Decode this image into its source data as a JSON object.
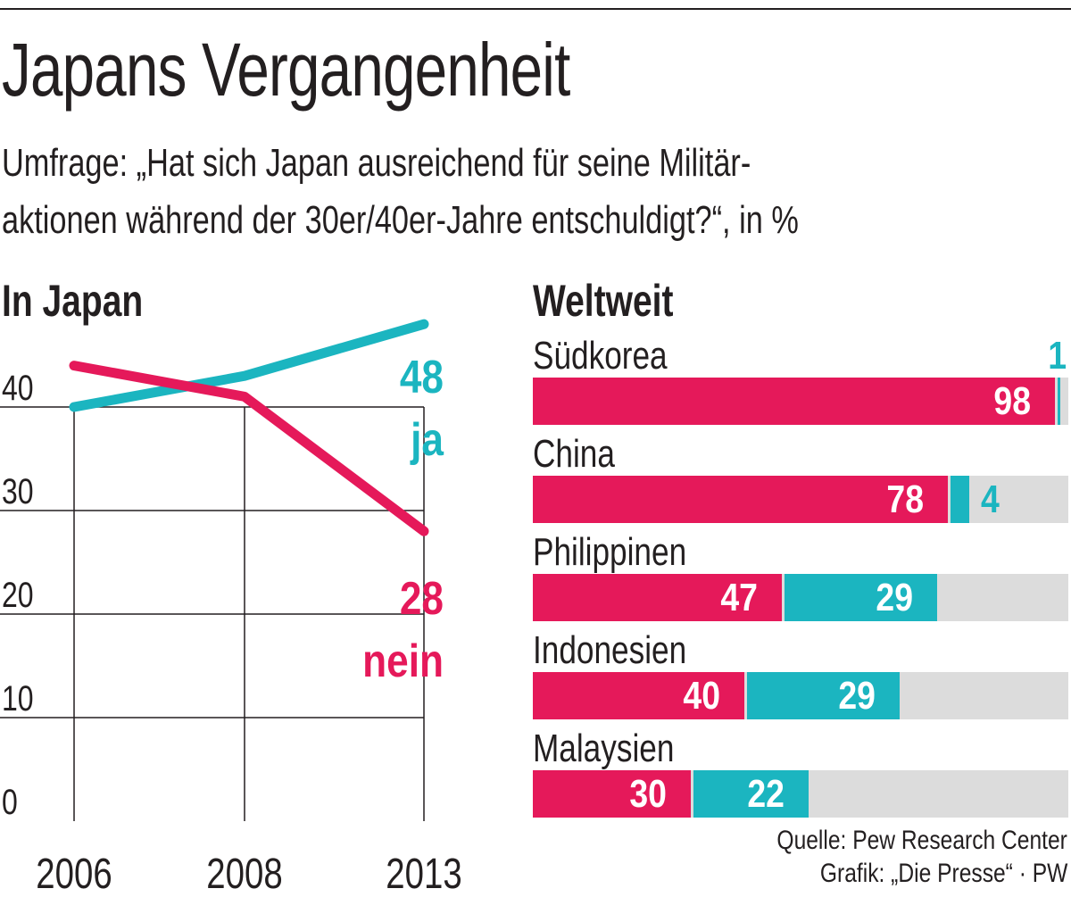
{
  "title": "Japans Vergangenheit",
  "subtitle_line1": "Umfrage: „Hat sich Japan ausreichend für seine Militär-",
  "subtitle_line2": "aktionen während der 30er/40er-Jahre entschuldigt?“, in %",
  "source": "Quelle: Pew Research Center",
  "credit": "Grafik: „Die Presse“ · PW",
  "colors": {
    "nein": "#e5195a",
    "ja": "#1bb5c0",
    "rest": "#dcdcdc",
    "grid": "#231f20"
  },
  "chart_data": [
    {
      "type": "line",
      "title": "In Japan",
      "x": [
        "2006",
        "2008",
        "2013"
      ],
      "yticks": [
        "0",
        "10",
        "20",
        "30",
        "40"
      ],
      "ylim": [
        0,
        48
      ],
      "grid": true,
      "series": [
        {
          "name": "ja",
          "values": [
            40,
            43,
            48
          ],
          "end_label": "48"
        },
        {
          "name": "nein",
          "values": [
            44,
            41,
            28
          ],
          "end_label": "28"
        }
      ]
    },
    {
      "type": "bar",
      "title": "Weltweit",
      "stacked": true,
      "xlim": [
        0,
        100
      ],
      "categories": [
        "Südkorea",
        "China",
        "Philippinen",
        "Indonesien",
        "Malaysien"
      ],
      "series": [
        {
          "name": "nein",
          "values": [
            98,
            78,
            47,
            40,
            30
          ]
        },
        {
          "name": "ja",
          "values": [
            1,
            4,
            29,
            29,
            22
          ]
        }
      ]
    }
  ]
}
